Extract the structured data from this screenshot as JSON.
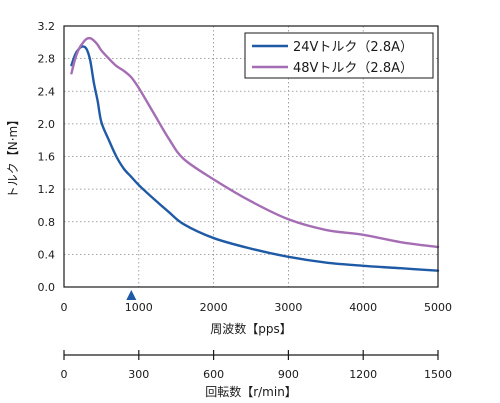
{
  "chart_data": {
    "type": "line",
    "title": "",
    "xlabel": "周波数【pps】",
    "ylabel": "トルク【N·m】",
    "xlim": [
      0,
      5000
    ],
    "ylim": [
      0,
      3.2
    ],
    "x_ticks": [
      0,
      1000,
      2000,
      3000,
      4000,
      5000
    ],
    "y_ticks": [
      "0.0",
      "0.4",
      "0.8",
      "1.2",
      "1.6",
      "2.0",
      "2.4",
      "2.8",
      "3.2"
    ],
    "grid": "dotted",
    "legend_position": "top-right",
    "marker_x": 900,
    "series": [
      {
        "name": "24Vトルク（2.8A）",
        "color": "#1f5aa6",
        "x": [
          100,
          150,
          200,
          250,
          300,
          350,
          400,
          450,
          500,
          600,
          700,
          800,
          900,
          1000,
          1200,
          1400,
          1600,
          2000,
          2500,
          3000,
          3500,
          4000,
          4500,
          5000
        ],
        "y": [
          2.72,
          2.85,
          2.92,
          2.95,
          2.92,
          2.78,
          2.5,
          2.28,
          2.02,
          1.8,
          1.6,
          1.45,
          1.35,
          1.25,
          1.08,
          0.92,
          0.77,
          0.6,
          0.47,
          0.37,
          0.3,
          0.26,
          0.23,
          0.2
        ]
      },
      {
        "name": "48Vトルク（2.8A）",
        "color": "#a56eb4",
        "x": [
          100,
          150,
          200,
          250,
          300,
          350,
          400,
          450,
          500,
          600,
          700,
          800,
          900,
          1000,
          1200,
          1400,
          1600,
          2000,
          2500,
          3000,
          3500,
          4000,
          4500,
          5000
        ],
        "y": [
          2.62,
          2.8,
          2.92,
          2.99,
          3.04,
          3.05,
          3.02,
          2.97,
          2.9,
          2.8,
          2.71,
          2.65,
          2.57,
          2.44,
          2.13,
          1.82,
          1.57,
          1.32,
          1.05,
          0.83,
          0.7,
          0.64,
          0.55,
          0.49
        ]
      }
    ],
    "secondary_x_axis": {
      "label": "回転数【r/min】",
      "ticks": [
        0,
        300,
        600,
        900,
        1200,
        1500
      ],
      "range": [
        0,
        1500
      ]
    }
  }
}
